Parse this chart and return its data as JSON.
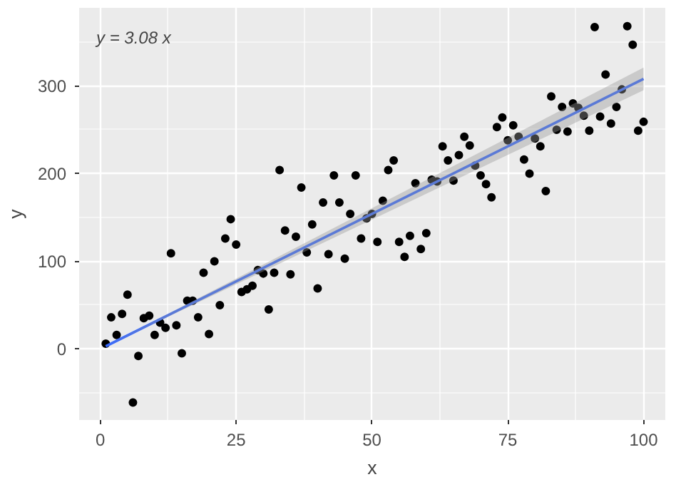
{
  "chart_data": {
    "type": "scatter",
    "xlabel": "x",
    "ylabel": "y",
    "annotations": [
      "y = 3.08 x"
    ],
    "xlim": [
      -3.9,
      104
    ],
    "ylim": [
      -81,
      389
    ],
    "xticks": [
      0,
      25,
      50,
      75,
      100
    ],
    "yticks": [
      0,
      100,
      200,
      300
    ],
    "grid": true,
    "marker": "circle",
    "series": [
      {
        "color": "#000000",
        "x": [
          1,
          2,
          3,
          4,
          5,
          6,
          7,
          8,
          9,
          10,
          11,
          12,
          13,
          14,
          15,
          16,
          17,
          18,
          19,
          20,
          21,
          22,
          23,
          24,
          25,
          26,
          27,
          28,
          29,
          30,
          31,
          32,
          33,
          34,
          35,
          36,
          37,
          38,
          39,
          40,
          41,
          42,
          43,
          44,
          45,
          46,
          47,
          48,
          49,
          50,
          51,
          52,
          53,
          54,
          55,
          56,
          57,
          58,
          59,
          60,
          61,
          62,
          63,
          64,
          65,
          66,
          67,
          68,
          69,
          70,
          71,
          72,
          73,
          74,
          75,
          76,
          77,
          78,
          79,
          80,
          81,
          82,
          83,
          84,
          85,
          86,
          87,
          88,
          89,
          90,
          91,
          92,
          93,
          94,
          95,
          96,
          97,
          98,
          99,
          100
        ],
        "values": [
          6,
          36,
          16,
          40,
          62,
          -61,
          -8,
          35,
          38,
          16,
          30,
          24,
          109,
          27,
          -5,
          55,
          55,
          36,
          87,
          17,
          100,
          50,
          126,
          148,
          119,
          65,
          68,
          72,
          90,
          86,
          45,
          87,
          204,
          135,
          85,
          128,
          184,
          110,
          142,
          69,
          167,
          108,
          198,
          167,
          103,
          154,
          198,
          126,
          149,
          154,
          122,
          169,
          204,
          215,
          122,
          105,
          129,
          189,
          114,
          132,
          193,
          191,
          231,
          215,
          192,
          221,
          242,
          232,
          209,
          198,
          188,
          173,
          253,
          264,
          238,
          255,
          242,
          216,
          200,
          240,
          231,
          180,
          288,
          250,
          276,
          248,
          280,
          275,
          266,
          249,
          367,
          265,
          313,
          257,
          276,
          296,
          368,
          347,
          249,
          259
        ]
      },
      {
        "type": "line",
        "marker": "none",
        "color": "#3366ff",
        "x": [
          1,
          100
        ],
        "values": [
          3.1,
          308
        ],
        "lower": [
          3.0,
          295
        ],
        "upper": [
          3.2,
          321
        ]
      }
    ]
  }
}
